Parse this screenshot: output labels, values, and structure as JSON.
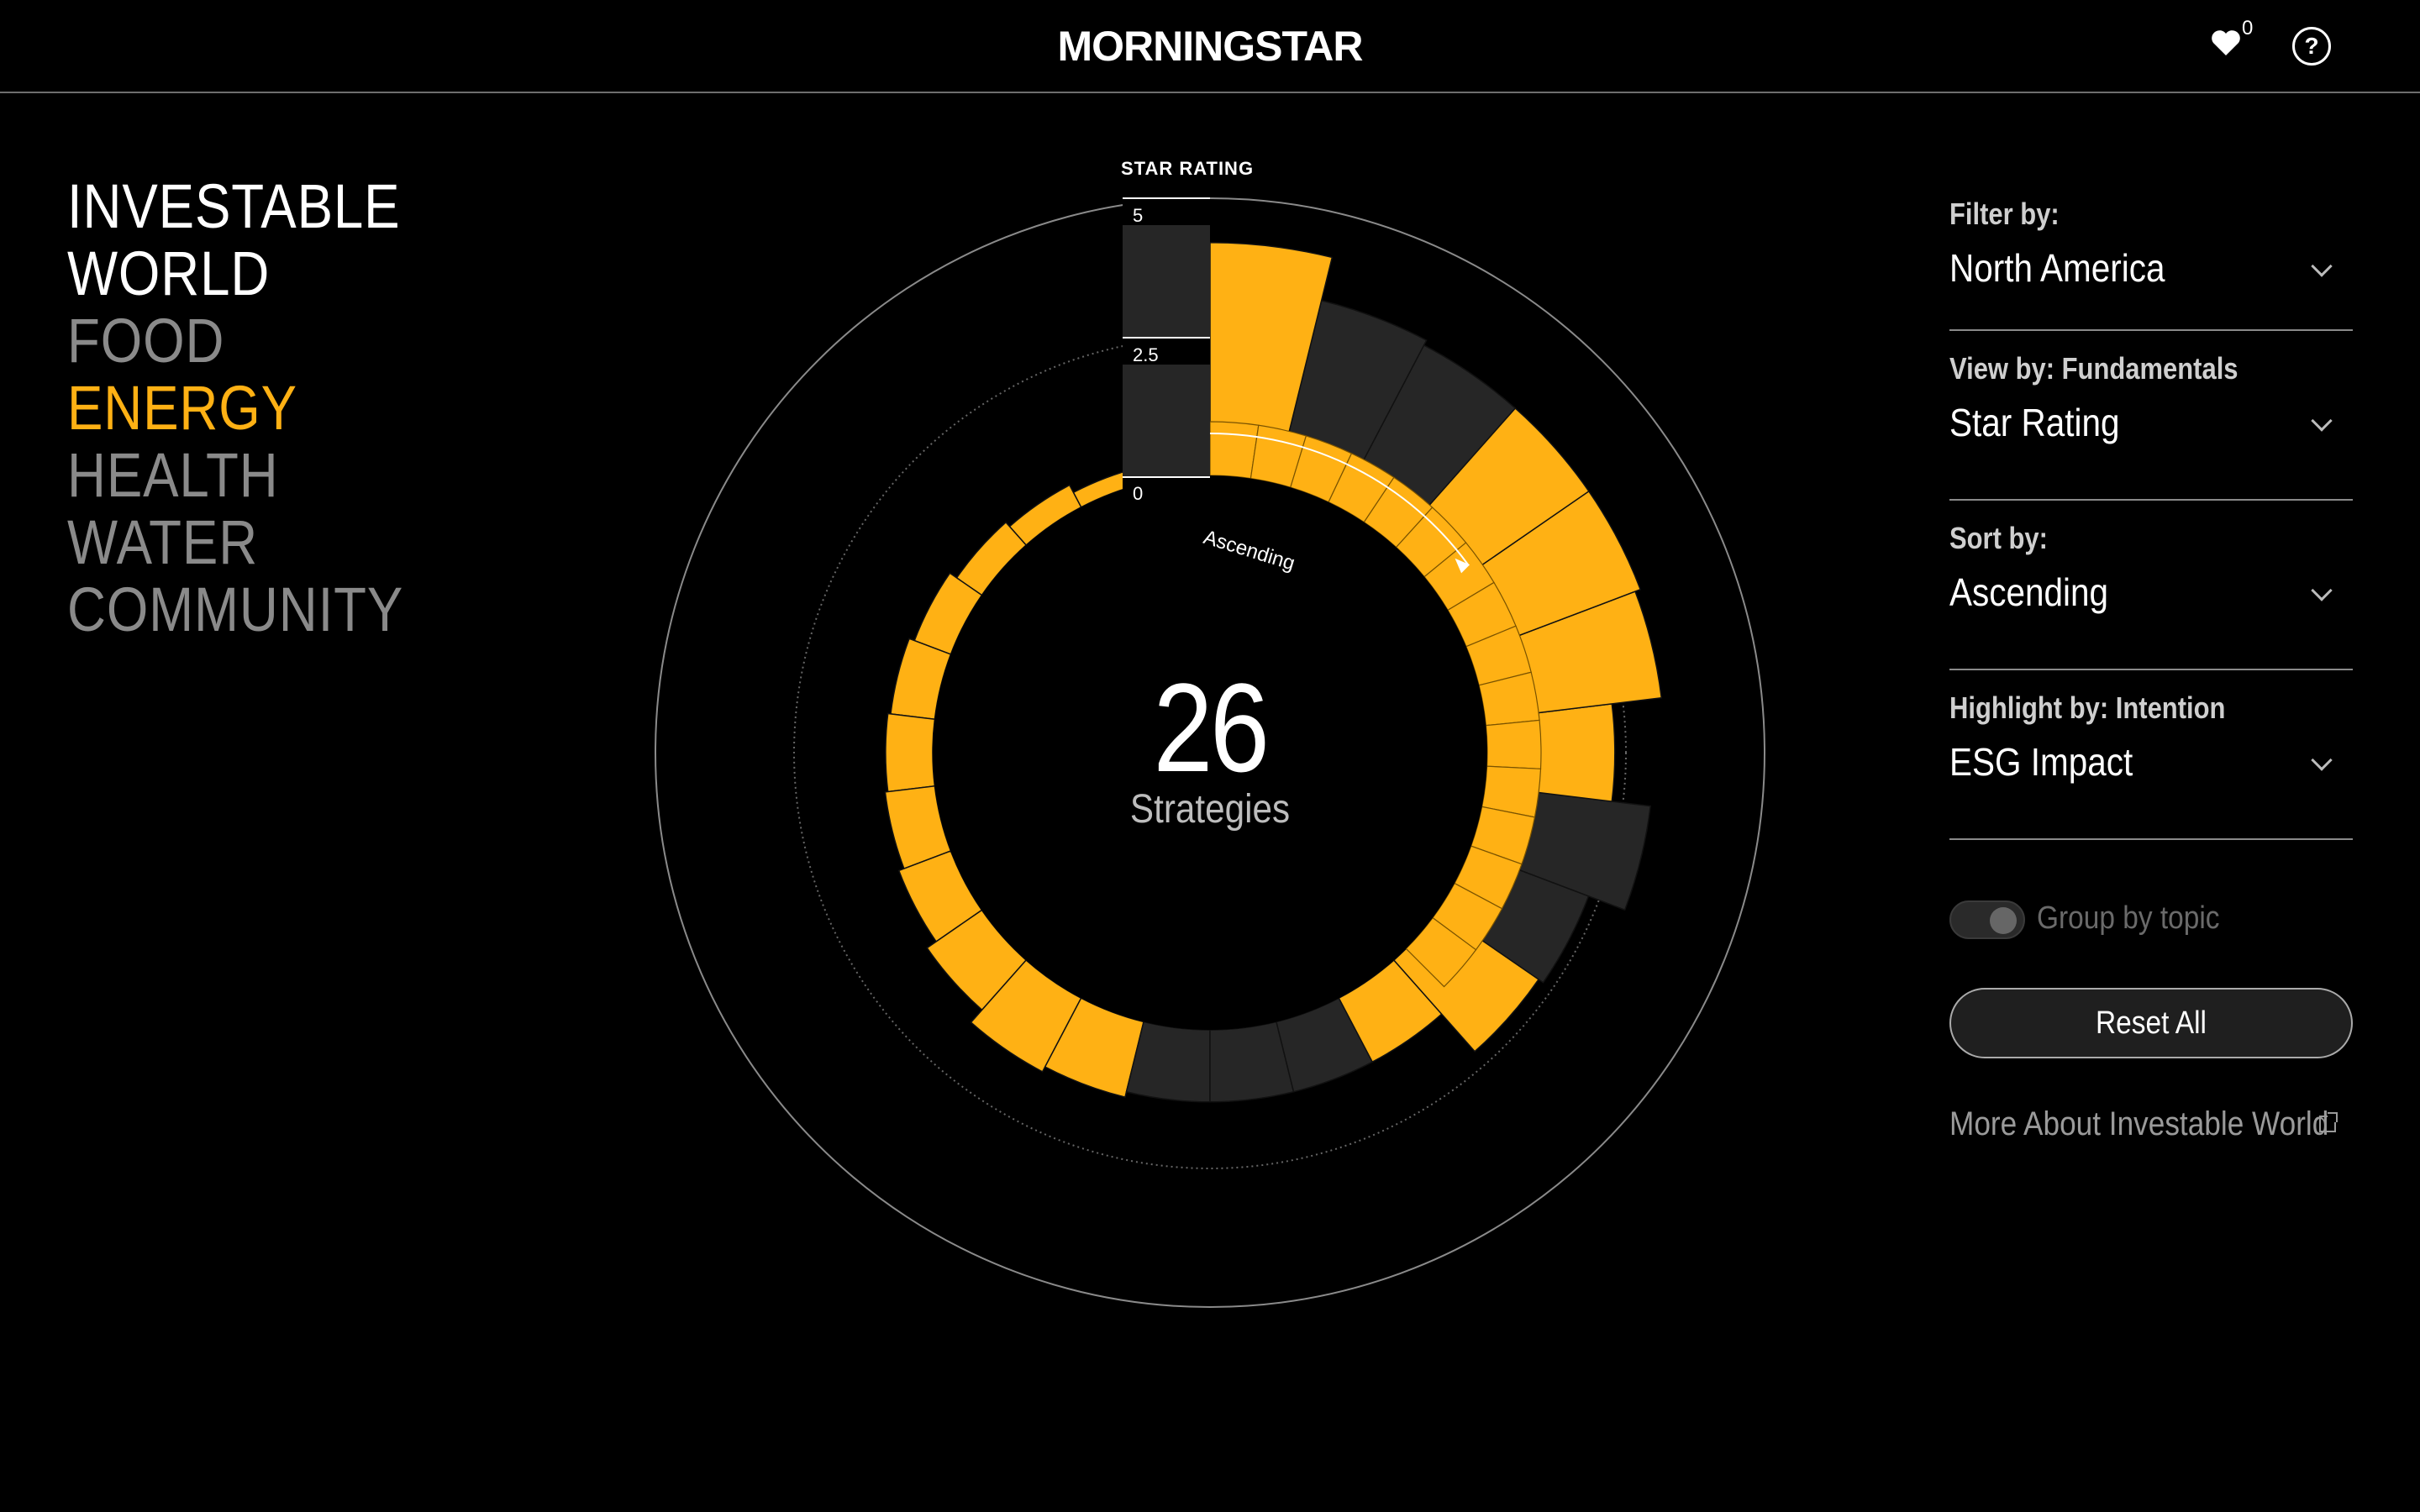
{
  "header": {
    "logo_text": "MORNINGSTAR",
    "favorites_count": "0",
    "help_symbol": "?"
  },
  "topics": [
    {
      "label": "INVESTABLE",
      "state": "active"
    },
    {
      "label": "WORLD",
      "state": "active"
    },
    {
      "label": "FOOD",
      "state": "inactive"
    },
    {
      "label": "ENERGY",
      "state": "selected"
    },
    {
      "label": "HEALTH",
      "state": "inactive"
    },
    {
      "label": "WATER",
      "state": "inactive"
    },
    {
      "label": "COMMUNITY",
      "state": "inactive"
    }
  ],
  "chart": {
    "count": "26",
    "count_label": "Strategies",
    "scale_title": "STAR RATING",
    "ticks": [
      "5",
      "2.5",
      "0"
    ],
    "sort_hint": "Ascending"
  },
  "chart_data": {
    "type": "radial-bar",
    "title": "STAR RATING",
    "range": [
      0,
      5
    ],
    "note": "26 strategies sorted ascending clockwise; outer bar length = star rating, inner ring = fundamentals",
    "segments": [
      {
        "index": 1,
        "value": 0.1,
        "highlight": true
      },
      {
        "index": 2,
        "value": 0.3,
        "highlight": true
      },
      {
        "index": 3,
        "value": 0.45,
        "highlight": true
      },
      {
        "index": 4,
        "value": 0.55,
        "highlight": true
      },
      {
        "index": 5,
        "value": 0.7,
        "highlight": true
      },
      {
        "index": 6,
        "value": 0.8,
        "highlight": true
      },
      {
        "index": 7,
        "value": 0.85,
        "highlight": true
      },
      {
        "index": 8,
        "value": 0.9,
        "highlight": true
      },
      {
        "index": 9,
        "value": 1.0,
        "highlight": true
      },
      {
        "index": 10,
        "value": 1.2,
        "highlight": true
      },
      {
        "index": 11,
        "value": 1.5,
        "highlight": true
      },
      {
        "index": 12,
        "value": 1.4,
        "highlight": true
      },
      {
        "index": 13,
        "value": 1.3,
        "highlight": false
      },
      {
        "index": 14,
        "value": 1.3,
        "highlight": false
      },
      {
        "index": 15,
        "value": 1.3,
        "highlight": false
      },
      {
        "index": 16,
        "value": 1.3,
        "highlight": true
      },
      {
        "index": 17,
        "value": 2.2,
        "highlight": true
      },
      {
        "index": 18,
        "value": 2.3,
        "highlight": false
      },
      {
        "index": 19,
        "value": 3.0,
        "highlight": false
      },
      {
        "index": 20,
        "value": 2.3,
        "highlight": true
      },
      {
        "index": 21,
        "value": 3.2,
        "highlight": true
      },
      {
        "index": 22,
        "value": 3.3,
        "highlight": true
      },
      {
        "index": 23,
        "value": 3.3,
        "highlight": true
      },
      {
        "index": 24,
        "value": 3.3,
        "highlight": false
      },
      {
        "index": 25,
        "value": 3.4,
        "highlight": false
      },
      {
        "index": 26,
        "value": 4.2,
        "highlight": true
      }
    ],
    "colors": {
      "highlight": "#ffb114",
      "base": "#262626"
    }
  },
  "panel": {
    "filter_label": "Filter by:",
    "filter_value": "North America",
    "view_label": "View by: Fundamentals",
    "view_value": "Star Rating",
    "sort_label": "Sort by:",
    "sort_value": "Ascending",
    "highlight_label": "Highlight by: Intention",
    "highlight_value": "ESG Impact",
    "toggle_label": "Group by topic",
    "reset_label": "Reset All",
    "more_link": "More About Investable World"
  }
}
